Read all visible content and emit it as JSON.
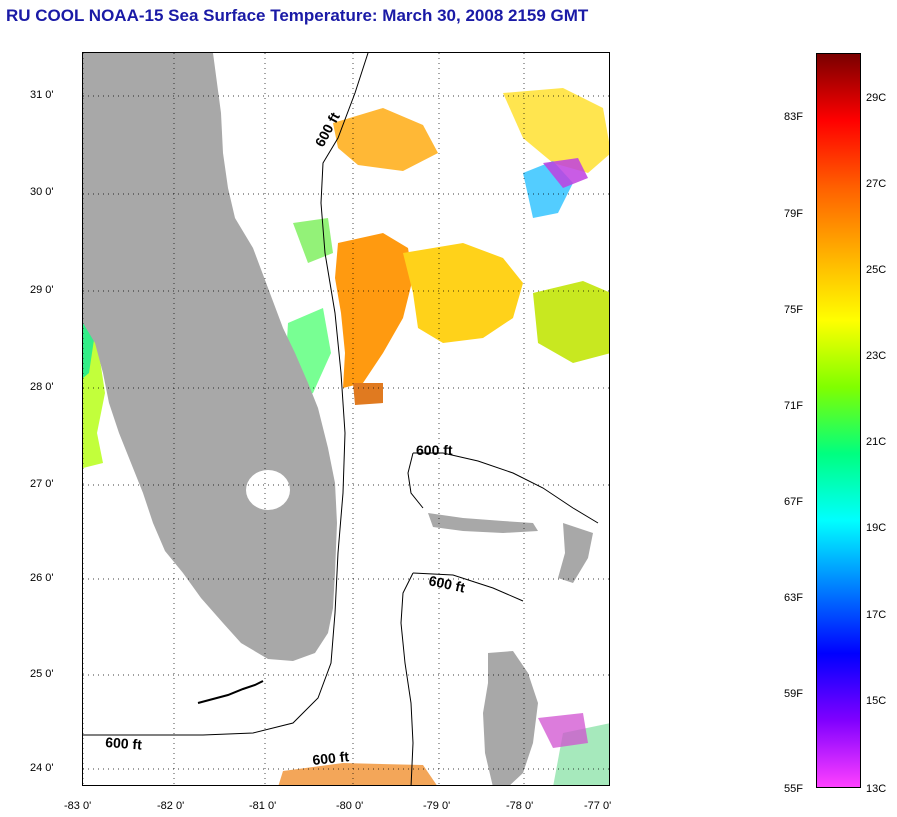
{
  "title": "RU COOL  NOAA-15  Sea Surface Temperature:  March 30, 2008 2159 GMT",
  "map": {
    "lat_labels": [
      "31 0'",
      "30 0'",
      "29 0'",
      "28 0'",
      "27 0'",
      "26 0'",
      "25 0'",
      "24 0'"
    ],
    "lon_labels": [
      "-83 0'",
      "-82 0'",
      "-81 0'",
      "-80 0'",
      "-79 0'",
      "-78 0'",
      "-77 0'"
    ],
    "contour_label": "600 ft",
    "colors": {
      "land": "#a8a8a8",
      "grid": "#000000",
      "contour": "#000000"
    }
  },
  "colorbar": {
    "f_labels": [
      "83F",
      "79F",
      "75F",
      "71F",
      "67F",
      "63F",
      "59F",
      "55F"
    ],
    "c_labels": [
      "29C",
      "27C",
      "25C",
      "23C",
      "21C",
      "19C",
      "17C",
      "15C",
      "13C"
    ],
    "gradient_colors": [
      "#7a0000",
      "#ff0000",
      "#ff6000",
      "#ffb000",
      "#ffff00",
      "#80ff00",
      "#00ff80",
      "#00ffff",
      "#0080ff",
      "#0000ff",
      "#8000ff",
      "#ff40ff"
    ]
  }
}
